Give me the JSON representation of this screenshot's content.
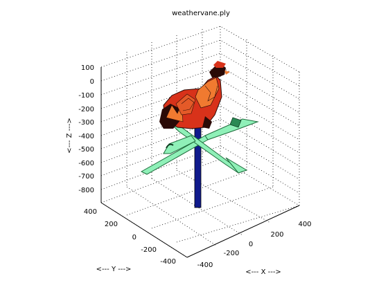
{
  "chart_data": {
    "type": "3d-mesh",
    "title": "weathervane.ply",
    "xlabel": "<--- X --->",
    "ylabel": "<--- Y --->",
    "zlabel": "<--- Z --->",
    "x_ticks": [
      "-400",
      "-200",
      "0",
      "200",
      "400"
    ],
    "y_ticks": [
      "-400",
      "-200",
      "0",
      "200",
      "400"
    ],
    "z_ticks": [
      "100",
      "0",
      "-100",
      "-200",
      "-300",
      "-400",
      "-500",
      "-600",
      "-700",
      "-800"
    ],
    "xlim": [
      -450,
      450
    ],
    "ylim": [
      -450,
      450
    ],
    "zlim": [
      -850,
      100
    ],
    "grid": true,
    "colors": {
      "rooster_dark": "#2a0a06",
      "rooster_red": "#d8321a",
      "rooster_orange": "#f07a30",
      "arrow_light": "#8ff0b8",
      "arrow_dark": "#1c6a3a",
      "pole": "#101a8c"
    }
  }
}
